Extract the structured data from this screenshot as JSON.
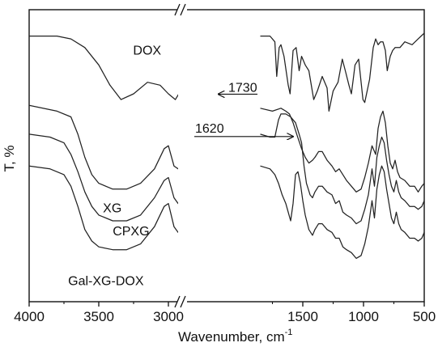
{
  "chart_data": {
    "type": "line",
    "xlabel": "Wavenumber, cm",
    "xlabel_superscript": "-1",
    "ylabel": "T, %",
    "x_axis": {
      "segments": [
        {
          "range": [
            4000,
            2700
          ],
          "ticks": [
            "4000",
            "3500",
            "3000"
          ],
          "tick_values": [
            4000,
            3500,
            3000
          ]
        },
        {
          "range": [
            1850,
            500
          ],
          "ticks": [
            "1500",
            "1000",
            "500"
          ],
          "tick_values": [
            1500,
            1000,
            500
          ]
        }
      ],
      "axis_break": true
    },
    "y_axis": {
      "range": [
        0,
        100
      ],
      "ticks": [],
      "units": "arbitrary transmittance, offset"
    },
    "grid": false,
    "annotations": [
      {
        "text": "1730",
        "x": 1730,
        "y": 73
      },
      {
        "text": "1620",
        "x": 1620,
        "y": 60
      }
    ],
    "series": [
      {
        "name": "DOX",
        "segments": [
          [
            [
              4000,
              92
            ],
            [
              3800,
              92
            ],
            [
              3700,
              91
            ],
            [
              3600,
              88
            ],
            [
              3500,
              82
            ],
            [
              3420,
              75
            ],
            [
              3340,
              70
            ],
            [
              3250,
              72
            ],
            [
              3150,
              76
            ],
            [
              3060,
              75
            ],
            [
              3000,
              72
            ],
            [
              2950,
              70
            ],
            [
              2900,
              74
            ],
            [
              2800,
              80
            ],
            [
              2700,
              83
            ]
          ],
          [
            [
              1850,
              92
            ],
            [
              1770,
              92
            ],
            [
              1730,
              90
            ],
            [
              1715,
              78
            ],
            [
              1695,
              88
            ],
            [
              1680,
              89
            ],
            [
              1655,
              85
            ],
            [
              1620,
              75
            ],
            [
              1605,
              72
            ],
            [
              1580,
              87
            ],
            [
              1555,
              88
            ],
            [
              1530,
              80
            ],
            [
              1510,
              85
            ],
            [
              1480,
              82
            ],
            [
              1450,
              80
            ],
            [
              1410,
              70
            ],
            [
              1380,
              73
            ],
            [
              1340,
              78
            ],
            [
              1300,
              74
            ],
            [
              1285,
              66
            ],
            [
              1250,
              73
            ],
            [
              1210,
              76
            ],
            [
              1175,
              84
            ],
            [
              1150,
              80
            ],
            [
              1120,
              75
            ],
            [
              1100,
              72
            ],
            [
              1085,
              77
            ],
            [
              1070,
              82
            ],
            [
              1040,
              84
            ],
            [
              1005,
              70
            ],
            [
              990,
              69
            ],
            [
              950,
              77
            ],
            [
              920,
              88
            ],
            [
              900,
              91
            ],
            [
              880,
              89
            ],
            [
              860,
              90
            ],
            [
              840,
              90
            ],
            [
              820,
              87
            ],
            [
              805,
              80
            ],
            [
              780,
              85
            ],
            [
              760,
              87
            ],
            [
              740,
              88
            ],
            [
              700,
              88
            ],
            [
              660,
              90
            ],
            [
              600,
              89
            ],
            [
              550,
              91
            ],
            [
              500,
              93
            ]
          ]
        ]
      },
      {
        "name": "XG",
        "segments": [
          [
            [
              4000,
              68
            ],
            [
              3800,
              66
            ],
            [
              3700,
              64
            ],
            [
              3650,
              58
            ],
            [
              3600,
              50
            ],
            [
              3550,
              44
            ],
            [
              3500,
              41
            ],
            [
              3400,
              39
            ],
            [
              3300,
              39
            ],
            [
              3200,
              41
            ],
            [
              3100,
              46
            ],
            [
              3030,
              53
            ],
            [
              3000,
              54
            ],
            [
              2960,
              47
            ],
            [
              2930,
              46
            ],
            [
              2880,
              51
            ],
            [
              2800,
              57
            ],
            [
              2700,
              61
            ]
          ],
          [
            [
              1850,
              67
            ],
            [
              1750,
              66
            ],
            [
              1680,
              67
            ],
            [
              1640,
              66
            ],
            [
              1610,
              65
            ],
            [
              1580,
              62
            ],
            [
              1550,
              58
            ],
            [
              1510,
              53
            ],
            [
              1480,
              50
            ],
            [
              1450,
              48
            ],
            [
              1420,
              49
            ],
            [
              1400,
              50
            ],
            [
              1370,
              52
            ],
            [
              1340,
              52
            ],
            [
              1300,
              49
            ],
            [
              1260,
              47
            ],
            [
              1230,
              45
            ],
            [
              1200,
              46
            ],
            [
              1170,
              44
            ],
            [
              1140,
              42
            ],
            [
              1100,
              40
            ],
            [
              1060,
              38
            ],
            [
              1020,
              39
            ],
            [
              990,
              43
            ],
            [
              960,
              48
            ],
            [
              930,
              54
            ],
            [
              900,
              51
            ],
            [
              880,
              60
            ],
            [
              860,
              64
            ],
            [
              840,
              66
            ],
            [
              820,
              62
            ],
            [
              800,
              54
            ],
            [
              780,
              48
            ],
            [
              760,
              46
            ],
            [
              740,
              49
            ],
            [
              720,
              45
            ],
            [
              700,
              43
            ],
            [
              660,
              42
            ],
            [
              620,
              40
            ],
            [
              580,
              40
            ],
            [
              550,
              38
            ],
            [
              520,
              40
            ],
            [
              500,
              41
            ]
          ]
        ]
      },
      {
        "name": "CPXG",
        "segments": [
          [
            [
              4000,
              58
            ],
            [
              3850,
              57
            ],
            [
              3750,
              55
            ],
            [
              3700,
              51
            ],
            [
              3650,
              45
            ],
            [
              3600,
              38
            ],
            [
              3550,
              33
            ],
            [
              3500,
              30
            ],
            [
              3400,
              28
            ],
            [
              3300,
              28
            ],
            [
              3200,
              30
            ],
            [
              3100,
              36
            ],
            [
              3030,
              42
            ],
            [
              3000,
              43
            ],
            [
              2960,
              36
            ],
            [
              2930,
              34
            ],
            [
              2880,
              39
            ],
            [
              2800,
              45
            ],
            [
              2700,
              49
            ]
          ],
          [
            [
              1850,
              58
            ],
            [
              1770,
              57
            ],
            [
              1730,
              57
            ],
            [
              1700,
              63
            ],
            [
              1680,
              65
            ],
            [
              1640,
              65
            ],
            [
              1600,
              64
            ],
            [
              1560,
              62
            ],
            [
              1530,
              58
            ],
            [
              1510,
              55
            ],
            [
              1490,
              47
            ],
            [
              1470,
              41
            ],
            [
              1440,
              37
            ],
            [
              1420,
              36
            ],
            [
              1400,
              38
            ],
            [
              1370,
              40
            ],
            [
              1340,
              40
            ],
            [
              1300,
              38
            ],
            [
              1260,
              37
            ],
            [
              1230,
              34
            ],
            [
              1200,
              35
            ],
            [
              1170,
              31
            ],
            [
              1140,
              30
            ],
            [
              1100,
              29
            ],
            [
              1060,
              27
            ],
            [
              1020,
              28
            ],
            [
              990,
              32
            ],
            [
              960,
              37
            ],
            [
              930,
              46
            ],
            [
              910,
              40
            ],
            [
              890,
              50
            ],
            [
              870,
              54
            ],
            [
              850,
              57
            ],
            [
              830,
              55
            ],
            [
              810,
              49
            ],
            [
              790,
              44
            ],
            [
              770,
              40
            ],
            [
              750,
              38
            ],
            [
              730,
              42
            ],
            [
              710,
              38
            ],
            [
              690,
              36
            ],
            [
              660,
              35
            ],
            [
              620,
              33
            ],
            [
              580,
              33
            ],
            [
              550,
              32
            ],
            [
              520,
              33
            ],
            [
              500,
              35
            ]
          ]
        ]
      },
      {
        "name": "Gal-XG-DOX",
        "segments": [
          [
            [
              4000,
              47
            ],
            [
              3850,
              46
            ],
            [
              3750,
              44
            ],
            [
              3700,
              40
            ],
            [
              3650,
              33
            ],
            [
              3600,
              25
            ],
            [
              3550,
              21
            ],
            [
              3500,
              19
            ],
            [
              3400,
              18
            ],
            [
              3300,
              18
            ],
            [
              3200,
              20
            ],
            [
              3100,
              26
            ],
            [
              3030,
              33
            ],
            [
              3000,
              34
            ],
            [
              2960,
              26
            ],
            [
              2930,
              24
            ],
            [
              2880,
              29
            ],
            [
              2800,
              34
            ],
            [
              2700,
              38
            ]
          ],
          [
            [
              1850,
              47
            ],
            [
              1770,
              46
            ],
            [
              1730,
              44
            ],
            [
              1700,
              41
            ],
            [
              1670,
              37
            ],
            [
              1640,
              34
            ],
            [
              1620,
              31
            ],
            [
              1600,
              28
            ],
            [
              1580,
              34
            ],
            [
              1560,
              44
            ],
            [
              1540,
              45
            ],
            [
              1520,
              41
            ],
            [
              1500,
              35
            ],
            [
              1480,
              30
            ],
            [
              1450,
              25
            ],
            [
              1420,
              23
            ],
            [
              1400,
              25
            ],
            [
              1370,
              27
            ],
            [
              1340,
              27
            ],
            [
              1300,
              25
            ],
            [
              1260,
              24
            ],
            [
              1230,
              22
            ],
            [
              1200,
              22
            ],
            [
              1170,
              19
            ],
            [
              1140,
              18
            ],
            [
              1100,
              17
            ],
            [
              1060,
              15
            ],
            [
              1020,
              16
            ],
            [
              990,
              20
            ],
            [
              960,
              26
            ],
            [
              930,
              35
            ],
            [
              910,
              29
            ],
            [
              890,
              39
            ],
            [
              870,
              44
            ],
            [
              850,
              47
            ],
            [
              830,
              45
            ],
            [
              810,
              39
            ],
            [
              790,
              34
            ],
            [
              770,
              29
            ],
            [
              750,
              27
            ],
            [
              730,
              31
            ],
            [
              710,
              27
            ],
            [
              690,
              25
            ],
            [
              660,
              24
            ],
            [
              620,
              22
            ],
            [
              580,
              22
            ],
            [
              550,
              21
            ],
            [
              520,
              22
            ],
            [
              500,
              24
            ]
          ]
        ]
      }
    ]
  }
}
